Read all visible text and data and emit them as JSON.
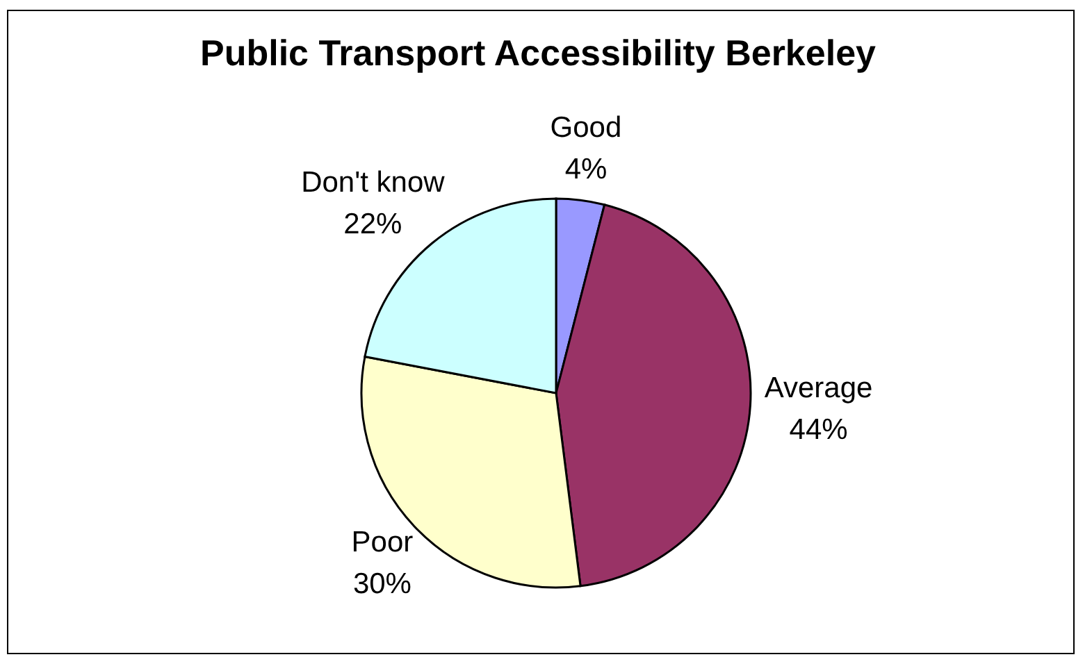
{
  "chart_data": {
    "type": "pie",
    "title": "Public Transport Accessibility Berkeley",
    "categories": [
      "Good",
      "Average",
      "Poor",
      "Don't know"
    ],
    "values": [
      4,
      44,
      30,
      22
    ],
    "value_labels": [
      "4%",
      "44%",
      "30%",
      "22%"
    ],
    "colors": [
      "#9999ff",
      "#993366",
      "#ffffcc",
      "#ccffff"
    ]
  }
}
